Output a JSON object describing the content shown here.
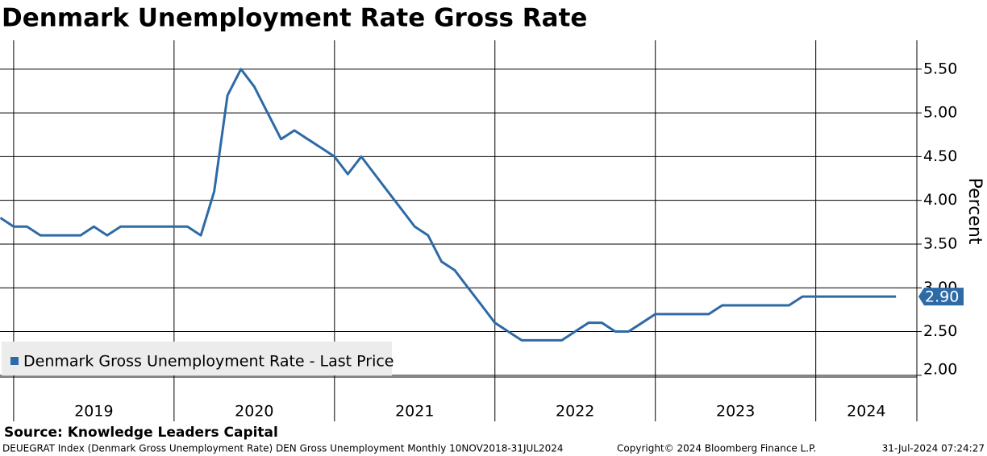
{
  "chart_data": {
    "type": "line",
    "title": "Denmark Unemployment Rate Gross Rate",
    "y_label": "Percent",
    "source": "Source:  Knowledge Leaders Capital",
    "footer_left": "DEUEGRAT Index (Denmark Gross Unemployment Rate) DEN Gross Unemployment  Monthly 10NOV2018-31JUL2024",
    "footer_center": "Copyright© 2024 Bloomberg Finance L.P.",
    "footer_right": "31-Jul-2024 07:24:27",
    "last_label": "2.90",
    "legend": "lower-left",
    "grid": true,
    "xlim": [
      2018.915,
      2024.63
    ],
    "xticks": [
      2019,
      2020,
      2021,
      2022,
      2023,
      2024
    ],
    "ylim": [
      1.98,
      5.83
    ],
    "yticks": [
      {
        "value": 2,
        "label": "2.00"
      },
      {
        "value": 2.5,
        "label": "2.50"
      },
      {
        "value": 3,
        "label": "3.00"
      },
      {
        "value": 3.5,
        "label": "3.50"
      },
      {
        "value": 4,
        "label": "4.00"
      },
      {
        "value": 4.5,
        "label": "4.50"
      },
      {
        "value": 5,
        "label": "5.00"
      },
      {
        "value": 5.5,
        "label": "5.50"
      }
    ],
    "x": [
      2018.917,
      2019.0,
      2019.083,
      2019.167,
      2019.25,
      2019.333,
      2019.417,
      2019.5,
      2019.583,
      2019.667,
      2019.75,
      2019.833,
      2019.917,
      2020.0,
      2020.083,
      2020.167,
      2020.25,
      2020.333,
      2020.417,
      2020.5,
      2020.583,
      2020.667,
      2020.75,
      2020.833,
      2020.917,
      2021.0,
      2021.083,
      2021.167,
      2021.25,
      2021.333,
      2021.417,
      2021.5,
      2021.583,
      2021.667,
      2021.75,
      2021.833,
      2021.917,
      2022.0,
      2022.083,
      2022.167,
      2022.25,
      2022.333,
      2022.417,
      2022.5,
      2022.583,
      2022.667,
      2022.75,
      2022.833,
      2022.917,
      2023.0,
      2023.083,
      2023.167,
      2023.25,
      2023.333,
      2023.417,
      2023.5,
      2023.583,
      2023.667,
      2023.75,
      2023.833,
      2023.917,
      2024.0,
      2024.083,
      2024.167,
      2024.25,
      2024.333,
      2024.417,
      2024.5
    ],
    "series": [
      {
        "name": "Denmark Gross Unemployment Rate - Last Price",
        "color": "#2d6aa6",
        "values": [
          3.8,
          3.7,
          3.7,
          3.6,
          3.6,
          3.6,
          3.6,
          3.7,
          3.6,
          3.7,
          3.7,
          3.7,
          3.7,
          3.7,
          3.7,
          3.6,
          4.1,
          5.2,
          5.5,
          5.3,
          5.0,
          4.7,
          4.8,
          4.7,
          4.6,
          4.5,
          4.3,
          4.5,
          4.3,
          4.1,
          3.9,
          3.7,
          3.6,
          3.3,
          3.2,
          3.0,
          2.8,
          2.6,
          2.5,
          2.4,
          2.4,
          2.4,
          2.4,
          2.5,
          2.6,
          2.6,
          2.5,
          2.5,
          2.6,
          2.7,
          2.7,
          2.7,
          2.7,
          2.7,
          2.8,
          2.8,
          2.8,
          2.8,
          2.8,
          2.8,
          2.9,
          2.9,
          2.9,
          2.9,
          2.9,
          2.9,
          2.9,
          2.9
        ]
      }
    ]
  }
}
